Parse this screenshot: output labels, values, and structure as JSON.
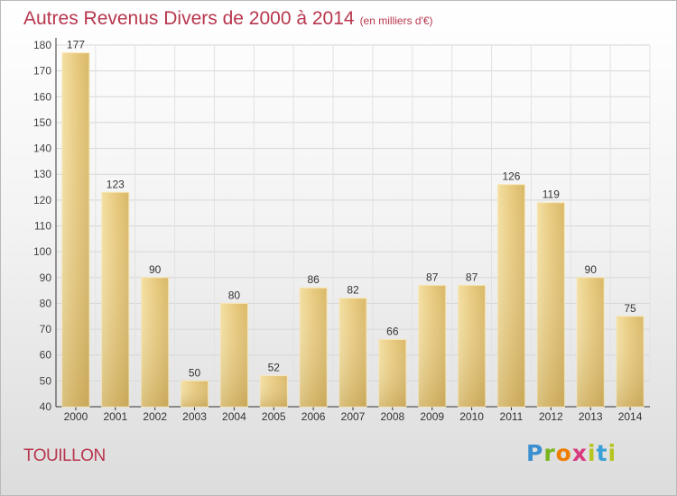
{
  "chart_data": {
    "type": "bar",
    "title": "Autres Revenus Divers de 2000 à 2014",
    "unit_note": "(en milliers d'€)",
    "categories": [
      "2000",
      "2001",
      "2002",
      "2003",
      "2004",
      "2005",
      "2006",
      "2007",
      "2008",
      "2009",
      "2010",
      "2011",
      "2012",
      "2013",
      "2014"
    ],
    "values": [
      177,
      123,
      90,
      50,
      80,
      52,
      86,
      82,
      66,
      87,
      87,
      126,
      119,
      90,
      75
    ],
    "ylim": [
      40,
      180
    ],
    "yticks": [
      40,
      50,
      60,
      70,
      80,
      90,
      100,
      110,
      120,
      130,
      140,
      150,
      160,
      170,
      180
    ],
    "grid": true,
    "bar_color": "#e9cd82"
  },
  "commune": "TOUILLON",
  "logo": {
    "text": "Proxiti"
  }
}
